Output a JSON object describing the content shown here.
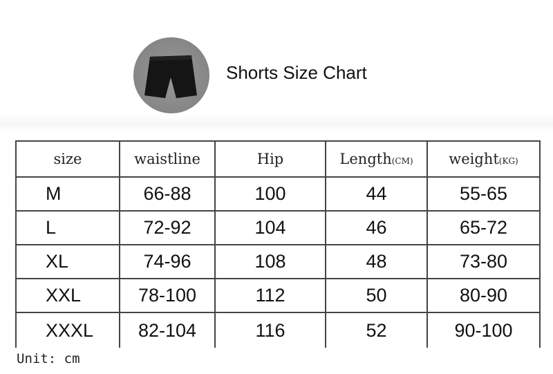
{
  "header": {
    "title": "Shorts Size Chart",
    "image": "black-shorts-photo"
  },
  "table": {
    "headers": [
      {
        "label": "size",
        "unit": ""
      },
      {
        "label": "waistline",
        "unit": ""
      },
      {
        "label": "Hip",
        "unit": ""
      },
      {
        "label": "Length",
        "unit": "(CM)"
      },
      {
        "label": "weight",
        "unit": "(KG)"
      }
    ],
    "rows": [
      [
        "M",
        "66-88",
        "100",
        "44",
        "55-65"
      ],
      [
        "L",
        "72-92",
        "104",
        "46",
        "65-72"
      ],
      [
        "XL",
        "74-96",
        "108",
        "48",
        "73-80"
      ],
      [
        "XXL",
        "78-100",
        "112",
        "50",
        "80-90"
      ],
      [
        "XXXL",
        "82-104",
        "116",
        "52",
        "90-100"
      ]
    ]
  },
  "footer": {
    "unit": "Unit: cm"
  }
}
